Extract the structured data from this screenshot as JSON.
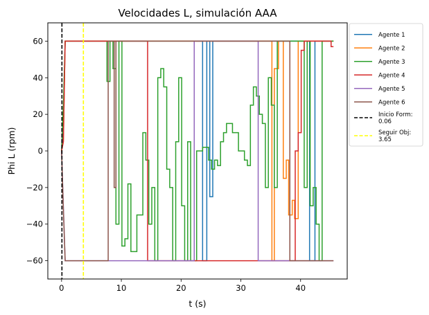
{
  "chart_data": {
    "type": "line",
    "title": "Velocidades L, simulación AAA",
    "xlabel": "t (s)",
    "ylabel": "Phi L (rpm)",
    "xlim": [
      -2.3,
      47.8
    ],
    "ylim": [
      -70,
      70
    ],
    "xticks": [
      0,
      10,
      20,
      30,
      40
    ],
    "yticks": [
      -60,
      -40,
      -20,
      0,
      20,
      40,
      60
    ],
    "grid": false,
    "legend_position": "outside-right",
    "series": [
      {
        "name": "Agente 1",
        "color": "#1f77b4",
        "points": [
          [
            0,
            0
          ],
          [
            0.3,
            10
          ],
          [
            0.6,
            60
          ],
          [
            23.6,
            60
          ],
          [
            23.6,
            -60
          ],
          [
            24.3,
            -60
          ],
          [
            24.3,
            60
          ],
          [
            24.8,
            60
          ],
          [
            24.8,
            -25
          ],
          [
            25.3,
            -25
          ],
          [
            25.3,
            60
          ],
          [
            41.5,
            60
          ],
          [
            41.5,
            -60
          ],
          [
            42.4,
            -60
          ],
          [
            42.4,
            60
          ],
          [
            45.5,
            60
          ]
        ]
      },
      {
        "name": "Agente 2",
        "color": "#ff7f0e",
        "points": [
          [
            0,
            0
          ],
          [
            0.3,
            5
          ],
          [
            0.6,
            60
          ],
          [
            35.2,
            60
          ],
          [
            35.2,
            -60
          ],
          [
            35.6,
            -60
          ],
          [
            35.6,
            45
          ],
          [
            36.3,
            45
          ],
          [
            36.3,
            60
          ],
          [
            37.1,
            60
          ],
          [
            37.1,
            -15
          ],
          [
            37.6,
            -15
          ],
          [
            37.6,
            -5
          ],
          [
            38,
            -5
          ],
          [
            38,
            -35
          ],
          [
            38.6,
            -35
          ],
          [
            38.6,
            -27
          ],
          [
            39,
            -27
          ],
          [
            39,
            -37
          ],
          [
            39.6,
            -37
          ],
          [
            39.6,
            60
          ],
          [
            45.5,
            60
          ]
        ]
      },
      {
        "name": "Agente 3",
        "color": "#2ca02c",
        "points": [
          [
            0,
            0
          ],
          [
            0.3,
            25
          ],
          [
            0.6,
            60
          ],
          [
            7.6,
            60
          ],
          [
            7.6,
            38
          ],
          [
            8.1,
            38
          ],
          [
            8.1,
            60
          ],
          [
            8.6,
            60
          ],
          [
            8.6,
            45
          ],
          [
            9.1,
            45
          ],
          [
            9.1,
            -40
          ],
          [
            9.6,
            -40
          ],
          [
            9.6,
            60
          ],
          [
            10.1,
            60
          ],
          [
            10.1,
            -52
          ],
          [
            10.6,
            -52
          ],
          [
            10.6,
            -48
          ],
          [
            11.1,
            -48
          ],
          [
            11.1,
            -18
          ],
          [
            11.6,
            -18
          ],
          [
            11.6,
            -55
          ],
          [
            12.6,
            -55
          ],
          [
            12.6,
            -35
          ],
          [
            13.6,
            -35
          ],
          [
            13.6,
            10
          ],
          [
            14.1,
            10
          ],
          [
            14.1,
            -5
          ],
          [
            14.6,
            -5
          ],
          [
            14.6,
            -40
          ],
          [
            15.1,
            -40
          ],
          [
            15.1,
            -20
          ],
          [
            15.6,
            -20
          ],
          [
            15.6,
            -60
          ],
          [
            16.1,
            -60
          ],
          [
            16.1,
            40
          ],
          [
            16.6,
            40
          ],
          [
            16.6,
            45
          ],
          [
            17.1,
            45
          ],
          [
            17.1,
            35
          ],
          [
            17.6,
            35
          ],
          [
            17.6,
            -10
          ],
          [
            18.1,
            -10
          ],
          [
            18.1,
            -20
          ],
          [
            18.6,
            -20
          ],
          [
            18.6,
            -60
          ],
          [
            19.1,
            -60
          ],
          [
            19.1,
            5
          ],
          [
            19.6,
            5
          ],
          [
            19.6,
            40
          ],
          [
            20.1,
            40
          ],
          [
            20.1,
            -30
          ],
          [
            20.6,
            -30
          ],
          [
            20.6,
            -60
          ],
          [
            21.1,
            -60
          ],
          [
            21.1,
            5
          ],
          [
            21.6,
            5
          ],
          [
            21.6,
            -60
          ],
          [
            22.6,
            -60
          ],
          [
            22.6,
            0
          ],
          [
            23.6,
            0
          ],
          [
            23.6,
            2
          ],
          [
            24.6,
            2
          ],
          [
            24.6,
            -5
          ],
          [
            25.1,
            -5
          ],
          [
            25.1,
            -10
          ],
          [
            25.6,
            -10
          ],
          [
            25.6,
            -5
          ],
          [
            26.1,
            -5
          ],
          [
            26.1,
            -8
          ],
          [
            26.6,
            -8
          ],
          [
            26.6,
            5
          ],
          [
            27.1,
            5
          ],
          [
            27.1,
            10
          ],
          [
            27.6,
            10
          ],
          [
            27.6,
            15
          ],
          [
            28.6,
            15
          ],
          [
            28.6,
            10
          ],
          [
            29.6,
            10
          ],
          [
            29.6,
            0
          ],
          [
            30.6,
            0
          ],
          [
            30.6,
            -5
          ],
          [
            31.1,
            -5
          ],
          [
            31.1,
            -8
          ],
          [
            31.6,
            -8
          ],
          [
            31.6,
            25
          ],
          [
            32.1,
            25
          ],
          [
            32.1,
            35
          ],
          [
            32.6,
            35
          ],
          [
            32.6,
            30
          ],
          [
            33.1,
            30
          ],
          [
            33.1,
            20
          ],
          [
            33.6,
            20
          ],
          [
            33.6,
            15
          ],
          [
            34.1,
            15
          ],
          [
            34.1,
            -20
          ],
          [
            34.6,
            -20
          ],
          [
            34.6,
            40
          ],
          [
            35.1,
            40
          ],
          [
            35.1,
            25
          ],
          [
            35.6,
            25
          ],
          [
            35.6,
            -20
          ],
          [
            36.1,
            -20
          ],
          [
            36.1,
            60
          ],
          [
            40.6,
            60
          ],
          [
            40.6,
            -20
          ],
          [
            41.1,
            -20
          ],
          [
            41.1,
            60
          ],
          [
            41.6,
            60
          ],
          [
            41.6,
            -30
          ],
          [
            42.1,
            -30
          ],
          [
            42.1,
            -20
          ],
          [
            42.6,
            -20
          ],
          [
            42.6,
            -40
          ],
          [
            43.1,
            -40
          ],
          [
            43.1,
            -60
          ],
          [
            43.6,
            -60
          ],
          [
            43.6,
            60
          ],
          [
            45.5,
            60
          ]
        ]
      },
      {
        "name": "Agente 4",
        "color": "#d62728",
        "points": [
          [
            0,
            0
          ],
          [
            0.3,
            5
          ],
          [
            0.6,
            60
          ],
          [
            14.4,
            60
          ],
          [
            14.4,
            -60
          ],
          [
            39.1,
            -60
          ],
          [
            39.1,
            0
          ],
          [
            39.6,
            0
          ],
          [
            39.6,
            10
          ],
          [
            40.1,
            10
          ],
          [
            40.1,
            55
          ],
          [
            40.6,
            55
          ],
          [
            40.6,
            60
          ],
          [
            45.1,
            60
          ],
          [
            45.1,
            57
          ],
          [
            45.5,
            57
          ]
        ]
      },
      {
        "name": "Agente 5",
        "color": "#9467bd",
        "points": [
          [
            0,
            0
          ],
          [
            0.3,
            -30
          ],
          [
            0.6,
            -60
          ],
          [
            22.2,
            -60
          ],
          [
            22.2,
            60
          ],
          [
            32.9,
            60
          ],
          [
            32.9,
            -60
          ],
          [
            45.5,
            -60
          ]
        ]
      },
      {
        "name": "Agente 6",
        "color": "#8c564b",
        "points": [
          [
            0,
            0
          ],
          [
            0.3,
            -32
          ],
          [
            0.6,
            -60
          ],
          [
            7.8,
            -60
          ],
          [
            7.8,
            60
          ],
          [
            8.8,
            60
          ],
          [
            8.8,
            -20
          ],
          [
            9.1,
            -20
          ],
          [
            9.1,
            60
          ],
          [
            38.2,
            60
          ],
          [
            38.2,
            -60
          ],
          [
            45.5,
            -60
          ]
        ]
      },
      {
        "name": "Inicio Form:\n0.06",
        "color": "#000000",
        "style": "dashed",
        "vline_x": 0.06
      },
      {
        "name": "Seguir Obj:\n3.65",
        "color": "#ffff00",
        "style": "dashed",
        "vline_x": 3.65
      }
    ]
  }
}
